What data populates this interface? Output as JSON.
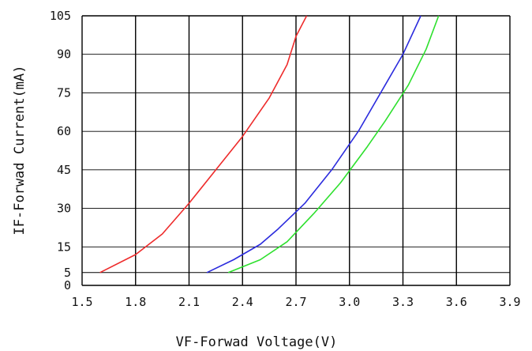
{
  "chart_data": {
    "type": "line",
    "xlabel": "VF-Forwad Voltage(V)",
    "ylabel": "IF-Forwad Current(mA)",
    "xlim": [
      1.5,
      3.9
    ],
    "ylim": [
      0,
      105
    ],
    "x_ticks": [
      "1.5",
      "1.8",
      "2.1",
      "2.4",
      "2.7",
      "3.0",
      "3.3",
      "3.6",
      "3.9"
    ],
    "y_ticks": [
      "105",
      "90",
      "75",
      "60",
      "45",
      "30",
      "15",
      "5",
      "0"
    ],
    "grid": true,
    "series": [
      {
        "color": "#ee2b2b",
        "points": [
          [
            1.6,
            5
          ],
          [
            1.8,
            12
          ],
          [
            1.95,
            20
          ],
          [
            2.1,
            32
          ],
          [
            2.25,
            45
          ],
          [
            2.4,
            58
          ],
          [
            2.55,
            73
          ],
          [
            2.65,
            86
          ],
          [
            2.7,
            97
          ],
          [
            2.76,
            105
          ]
        ]
      },
      {
        "color": "#2b2bdd",
        "points": [
          [
            2.2,
            5
          ],
          [
            2.35,
            10
          ],
          [
            2.5,
            16
          ],
          [
            2.6,
            22
          ],
          [
            2.75,
            32
          ],
          [
            2.9,
            45
          ],
          [
            3.05,
            60
          ],
          [
            3.2,
            78
          ],
          [
            3.3,
            90
          ],
          [
            3.4,
            105
          ]
        ]
      },
      {
        "color": "#2ee02e",
        "points": [
          [
            2.32,
            5
          ],
          [
            2.5,
            10
          ],
          [
            2.65,
            17
          ],
          [
            2.8,
            28
          ],
          [
            2.95,
            40
          ],
          [
            3.1,
            54
          ],
          [
            3.2,
            64
          ],
          [
            3.33,
            78
          ],
          [
            3.43,
            92
          ],
          [
            3.5,
            105
          ]
        ]
      }
    ]
  }
}
